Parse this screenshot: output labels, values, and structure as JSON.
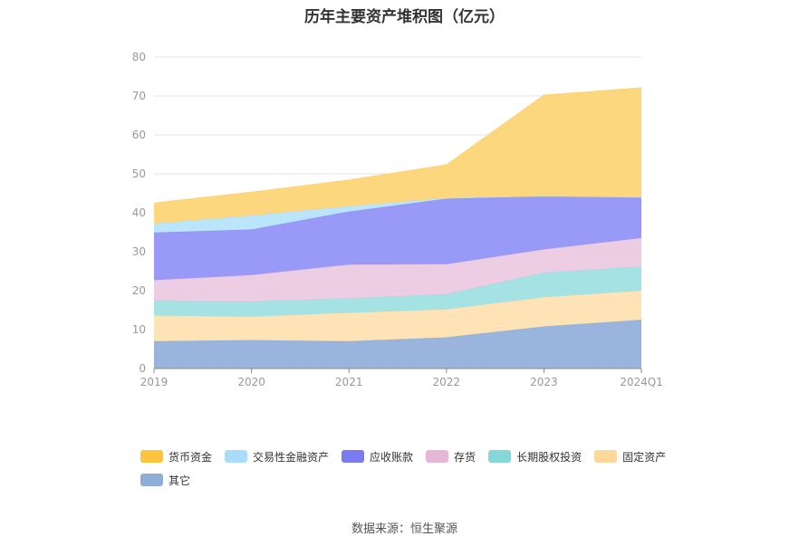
{
  "title": "历年主要资产堆积图（亿元）",
  "source_text": "数据来源：恒生聚源",
  "chart_data": {
    "type": "area",
    "stacked": true,
    "categories": [
      "2019",
      "2020",
      "2021",
      "2022",
      "2023",
      "2024Q1"
    ],
    "ylim": [
      0,
      80
    ],
    "yticks": [
      0,
      10,
      20,
      30,
      40,
      50,
      60,
      70,
      80
    ],
    "grid": true,
    "legend_position": "bottom",
    "series": [
      {
        "name": "其它",
        "color": "#8eadd9",
        "values": [
          7.0,
          7.3,
          7.0,
          8.0,
          10.8,
          12.5
        ]
      },
      {
        "name": "固定资产",
        "color": "#fde0ae",
        "values": [
          6.6,
          6.0,
          7.3,
          7.2,
          7.5,
          7.5
        ]
      },
      {
        "name": "长期股权投资",
        "color": "#9bdfe0",
        "values": [
          3.8,
          3.9,
          3.7,
          3.9,
          6.3,
          6.2
        ]
      },
      {
        "name": "存货",
        "color": "#eac8e0",
        "values": [
          5.3,
          6.8,
          8.7,
          7.7,
          6.0,
          7.3
        ]
      },
      {
        "name": "应收账款",
        "color": "#8e8ef7",
        "values": [
          12.2,
          11.7,
          13.6,
          16.8,
          13.7,
          10.5
        ]
      },
      {
        "name": "交易性金融资产",
        "color": "#b3e2fa",
        "values": [
          2.3,
          3.6,
          1.4,
          0.2,
          0.0,
          0.0
        ]
      },
      {
        "name": "货币资金",
        "color": "#fdd36f",
        "values": [
          5.3,
          6.0,
          6.7,
          8.5,
          25.9,
          28.1
        ]
      }
    ]
  },
  "legend": [
    {
      "label": "货币资金",
      "color": "#fdc43d"
    },
    {
      "label": "交易性金融资产",
      "color": "#a8dcfa"
    },
    {
      "label": "应收账款",
      "color": "#7b7bf2"
    },
    {
      "label": "存货",
      "color": "#e8b7d7"
    },
    {
      "label": "长期股权投资",
      "color": "#86d8d8"
    },
    {
      "label": "固定资产",
      "color": "#fdd89b"
    },
    {
      "label": "其它",
      "color": "#8eadd9"
    }
  ]
}
